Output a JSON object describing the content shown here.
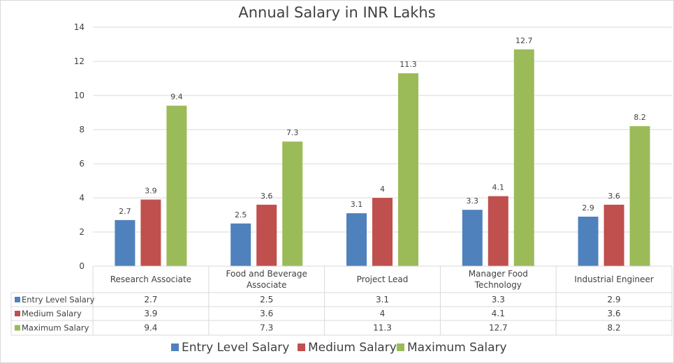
{
  "chart_data": {
    "type": "bar",
    "title": "Annual Salary in INR Lakhs",
    "xlabel": "",
    "ylabel": "",
    "ylim": [
      0,
      14
    ],
    "yticks": [
      0,
      2,
      4,
      6,
      8,
      10,
      12,
      14
    ],
    "grid": true,
    "legend_position": "bottom",
    "data_table": true,
    "categories": [
      "Research Associate",
      "Food and Beverage Associate",
      "Project Lead",
      "Manager Food Technology",
      "Industrial Engineer"
    ],
    "category_lines": [
      [
        "Research Associate"
      ],
      [
        "Food and Beverage",
        "Associate"
      ],
      [
        "Project Lead"
      ],
      [
        "Manager Food",
        "Technology"
      ],
      [
        "Industrial Engineer"
      ]
    ],
    "series": [
      {
        "name": "Entry Level Salary",
        "color": "#4f81bd",
        "values": [
          2.7,
          2.5,
          3.1,
          3.3,
          2.9
        ]
      },
      {
        "name": "Medium Salary",
        "color": "#c0504d",
        "values": [
          3.9,
          3.6,
          4,
          4.1,
          3.6
        ]
      },
      {
        "name": "Maximum Salary",
        "color": "#9bbb59",
        "values": [
          9.4,
          7.3,
          11.3,
          12.7,
          8.2
        ]
      }
    ]
  }
}
